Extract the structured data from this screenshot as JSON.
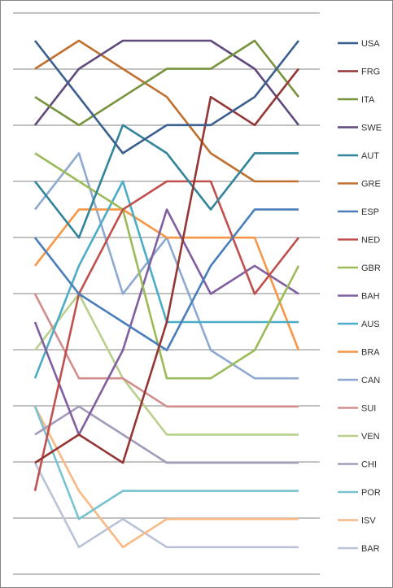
{
  "chart_data": {
    "type": "line",
    "title": "",
    "xlabel": "",
    "ylabel": "",
    "x": [
      1,
      2,
      3,
      4,
      5,
      6,
      7
    ],
    "ylim": [
      1,
      19
    ],
    "y_inverted": true,
    "grid": true,
    "axes_labels_shown": false,
    "legend_position": "right",
    "series": [
      {
        "name": "USA",
        "color": "#3a5f8f",
        "values": [
          1,
          3,
          5,
          4,
          4,
          3,
          1
        ]
      },
      {
        "name": "FRG",
        "color": "#943634",
        "values": [
          16,
          15,
          16,
          11,
          3,
          4,
          2
        ]
      },
      {
        "name": "ITA",
        "color": "#77933c",
        "values": [
          3,
          4,
          3,
          2,
          2,
          1,
          3
        ]
      },
      {
        "name": "SWE",
        "color": "#604a7b",
        "values": [
          4,
          2,
          1,
          1,
          1,
          2,
          4
        ]
      },
      {
        "name": "AUT",
        "color": "#31849b",
        "values": [
          6,
          8,
          4,
          5,
          7,
          5,
          5
        ]
      },
      {
        "name": "GRE",
        "color": "#c0702e",
        "values": [
          2,
          1,
          2,
          3,
          5,
          6,
          6
        ]
      },
      {
        "name": "ESP",
        "color": "#4a7ebb",
        "values": [
          8,
          10,
          11,
          12,
          9,
          7,
          7
        ]
      },
      {
        "name": "NED",
        "color": "#c0504d",
        "values": [
          17,
          10,
          7,
          6,
          6,
          10,
          8
        ]
      },
      {
        "name": "GBR",
        "color": "#9bbb59",
        "values": [
          5,
          6,
          7,
          13,
          13,
          12,
          9
        ]
      },
      {
        "name": "BAH",
        "color": "#7f5fa0",
        "values": [
          11,
          15,
          12,
          7,
          10,
          9,
          10
        ]
      },
      {
        "name": "AUS",
        "color": "#4bacc6",
        "values": [
          13,
          9,
          6,
          11,
          11,
          11,
          11
        ]
      },
      {
        "name": "BRA",
        "color": "#f79646",
        "values": [
          9,
          7,
          7,
          8,
          8,
          8,
          12
        ]
      },
      {
        "name": "CAN",
        "color": "#8ea9d0",
        "values": [
          7,
          5,
          10,
          8,
          12,
          13,
          13
        ]
      },
      {
        "name": "SUI",
        "color": "#d08d8b",
        "values": [
          10,
          13,
          13,
          14,
          14,
          14,
          14
        ]
      },
      {
        "name": "VEN",
        "color": "#b8d08c",
        "values": [
          12,
          10,
          13,
          15,
          15,
          15,
          15
        ]
      },
      {
        "name": "CHI",
        "color": "#a39bb9",
        "values": [
          15,
          14,
          15,
          16,
          16,
          16,
          16
        ]
      },
      {
        "name": "POR",
        "color": "#79c3d1",
        "values": [
          14,
          18,
          17,
          17,
          17,
          17,
          17
        ]
      },
      {
        "name": "ISV",
        "color": "#f8b985",
        "values": [
          14,
          17,
          19,
          18,
          18,
          18,
          18
        ]
      },
      {
        "name": "BAR",
        "color": "#b9c2d6",
        "values": [
          16,
          19,
          18,
          19,
          19,
          19,
          19
        ]
      }
    ]
  }
}
